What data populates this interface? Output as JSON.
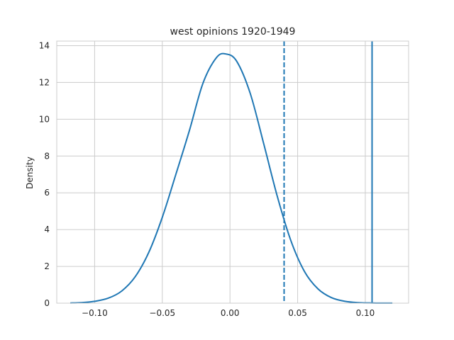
{
  "chart_data": {
    "type": "line",
    "title": "west opinions 1920-1949",
    "xlabel": "",
    "ylabel": "Density",
    "xlim": [
      -0.128,
      0.132
    ],
    "ylim": [
      0,
      14.25
    ],
    "xticks": [
      -0.1,
      -0.05,
      0.0,
      0.05,
      0.1
    ],
    "xtick_labels": [
      "−0.10",
      "−0.05",
      "0.00",
      "0.05",
      "0.10"
    ],
    "yticks": [
      0,
      2,
      4,
      6,
      8,
      10,
      12,
      14
    ],
    "ytick_labels": [
      "0",
      "2",
      "4",
      "6",
      "8",
      "10",
      "12",
      "14"
    ],
    "grid": true,
    "line_color": "#1f77b4",
    "grid_color": "#cccccc",
    "series": [
      {
        "x": [
          -0.118,
          -0.11,
          -0.1,
          -0.09,
          -0.08,
          -0.07,
          -0.06,
          -0.05,
          -0.04,
          -0.03,
          -0.02,
          -0.01,
          -0.003,
          0.005,
          0.015,
          0.025,
          0.035,
          0.045,
          0.055,
          0.065,
          0.075,
          0.085,
          0.095,
          0.105,
          0.115,
          0.12
        ],
        "y": [
          0.01,
          0.03,
          0.1,
          0.27,
          0.66,
          1.44,
          2.76,
          4.67,
          7.0,
          9.38,
          11.95,
          13.35,
          13.55,
          13.15,
          11.4,
          8.65,
          5.8,
          3.4,
          1.73,
          0.78,
          0.3,
          0.1,
          0.03,
          0.01,
          0.005,
          0.003
        ]
      }
    ],
    "vlines": [
      {
        "x": 0.04,
        "style": "dashed"
      },
      {
        "x": 0.105,
        "style": "solid"
      }
    ]
  }
}
